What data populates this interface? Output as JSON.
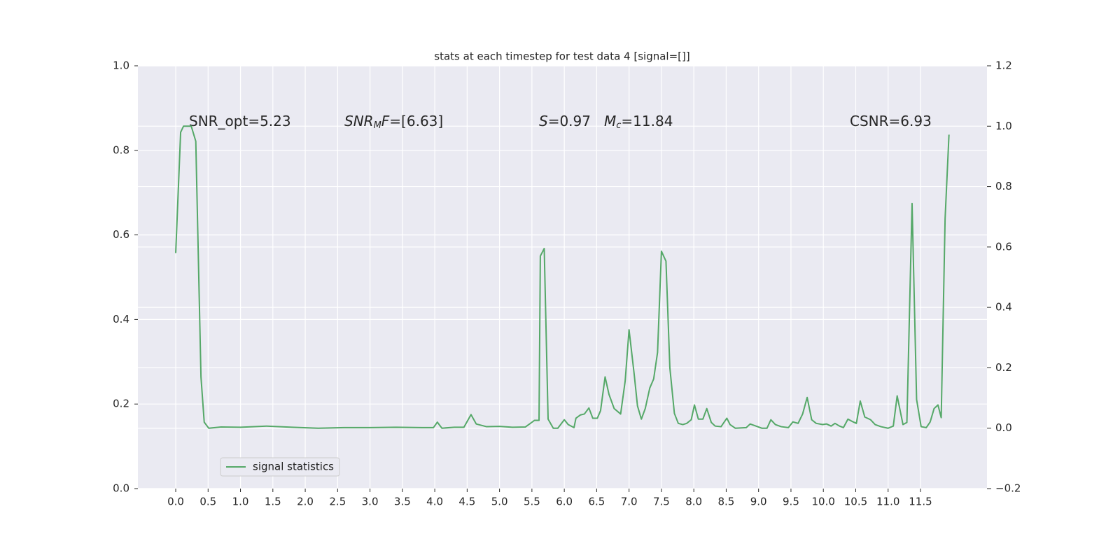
{
  "chart_data": {
    "type": "line",
    "title": "stats at each timestep for test data 4 [signal=[]]",
    "annotations": [
      {
        "parts": [
          "SNR_opt=5.23"
        ]
      },
      {
        "parts": [
          "SNR",
          "M",
          "F",
          "=[6.63]"
        ]
      },
      {
        "parts": [
          "S",
          "=0.97"
        ]
      },
      {
        "parts": [
          "M",
          "c",
          "=11.84"
        ]
      },
      {
        "parts": [
          "CSNR=6.93"
        ]
      }
    ],
    "x": [
      0,
      0.076,
      0.12,
      0.24,
      0.31,
      0.39,
      0.44,
      0.51,
      0.7,
      1.0,
      1.4,
      1.8,
      2.2,
      2.6,
      3.0,
      3.4,
      3.8,
      3.98,
      4.04,
      4.11,
      4.3,
      4.45,
      4.56,
      4.64,
      4.8,
      5.0,
      5.2,
      5.4,
      5.54,
      5.61,
      5.63,
      5.69,
      5.75,
      5.83,
      5.9,
      6.0,
      6.06,
      6.15,
      6.18,
      6.25,
      6.31,
      6.38,
      6.44,
      6.51,
      6.56,
      6.63,
      6.69,
      6.77,
      6.87,
      6.94,
      7.0,
      7.08,
      7.13,
      7.19,
      7.25,
      7.32,
      7.38,
      7.44,
      7.5,
      7.57,
      7.63,
      7.7,
      7.76,
      7.83,
      7.89,
      7.96,
      8.01,
      8.07,
      8.14,
      8.2,
      8.27,
      8.33,
      8.42,
      8.51,
      8.56,
      8.64,
      8.81,
      8.87,
      8.96,
      9.05,
      9.13,
      9.19,
      9.26,
      9.35,
      9.46,
      9.53,
      9.61,
      9.68,
      9.75,
      9.82,
      9.89,
      9.99,
      10.05,
      10.12,
      10.18,
      10.25,
      10.31,
      10.38,
      10.44,
      10.51,
      10.57,
      10.64,
      10.73,
      10.8,
      10.89,
      11.0,
      11.08,
      11.14,
      11.23,
      11.29,
      11.37,
      11.44,
      11.51,
      11.59,
      11.65,
      11.71,
      11.77,
      11.82,
      11.88,
      11.94
    ],
    "series": [
      {
        "name": "signal statistics",
        "color": "#55a868",
        "axis": "y2",
        "values": [
          0.58,
          0.98,
          1.0,
          1.0,
          0.95,
          0.17,
          0.02,
          0.0,
          0.004,
          0.003,
          0.007,
          0.003,
          0.0,
          0.002,
          0.002,
          0.003,
          0.002,
          0.002,
          0.02,
          0.0,
          0.003,
          0.003,
          0.045,
          0.014,
          0.005,
          0.006,
          0.003,
          0.004,
          0.026,
          0.026,
          0.57,
          0.595,
          0.03,
          0.0,
          0.0,
          0.028,
          0.012,
          0.002,
          0.033,
          0.044,
          0.047,
          0.067,
          0.033,
          0.033,
          0.058,
          0.17,
          0.112,
          0.065,
          0.047,
          0.156,
          0.326,
          0.177,
          0.074,
          0.03,
          0.065,
          0.133,
          0.163,
          0.251,
          0.586,
          0.553,
          0.2,
          0.049,
          0.016,
          0.012,
          0.016,
          0.028,
          0.077,
          0.03,
          0.03,
          0.065,
          0.019,
          0.007,
          0.005,
          0.033,
          0.012,
          0.0,
          0.002,
          0.014,
          0.007,
          0.0,
          0.0,
          0.028,
          0.012,
          0.005,
          0.002,
          0.021,
          0.016,
          0.047,
          0.102,
          0.028,
          0.016,
          0.012,
          0.014,
          0.007,
          0.016,
          0.007,
          0.002,
          0.03,
          0.023,
          0.016,
          0.09,
          0.037,
          0.028,
          0.012,
          0.005,
          0.0,
          0.007,
          0.107,
          0.012,
          0.019,
          0.744,
          0.095,
          0.005,
          0.002,
          0.021,
          0.065,
          0.077,
          0.035,
          0.693,
          0.972
        ]
      }
    ],
    "xlim": [
      -0.584,
      12.527
    ],
    "xticks": [
      {
        "value": 0,
        "label": "0.0"
      },
      0.5,
      {
        "value": 1,
        "label": "1.0"
      },
      1.5,
      {
        "value": 2,
        "label": "2.0"
      },
      2.5,
      {
        "value": 3,
        "label": "3.0"
      },
      3.5,
      {
        "value": 4,
        "label": "4.0"
      },
      4.5,
      {
        "value": 5,
        "label": "5.0"
      },
      5.5,
      {
        "value": 6,
        "label": "6.0"
      },
      6.5,
      {
        "value": 7,
        "label": "7.0"
      },
      7.5,
      {
        "value": 8,
        "label": "8.0"
      },
      8.5,
      {
        "value": 9,
        "label": "9.0"
      },
      9.5,
      {
        "value": 10,
        "label": "10.0"
      },
      10.5,
      {
        "value": 11,
        "label": "11.0"
      },
      11.5
    ],
    "ylim": [
      0,
      1
    ],
    "yticks": [
      {
        "value": 0,
        "label": "0.0"
      },
      0.2,
      0.4,
      0.6,
      0.8,
      {
        "value": 1,
        "label": "1.0"
      }
    ],
    "y2lim": [
      -0.2,
      1.2
    ],
    "y2ticks": [
      {
        "value": -0.2,
        "label": "−0.2"
      },
      {
        "value": 0,
        "label": "0.0"
      },
      0.2,
      0.4,
      0.6,
      0.8,
      {
        "value": 1,
        "label": "1.0"
      },
      1.2
    ],
    "grid": true,
    "legend": "lower left"
  }
}
